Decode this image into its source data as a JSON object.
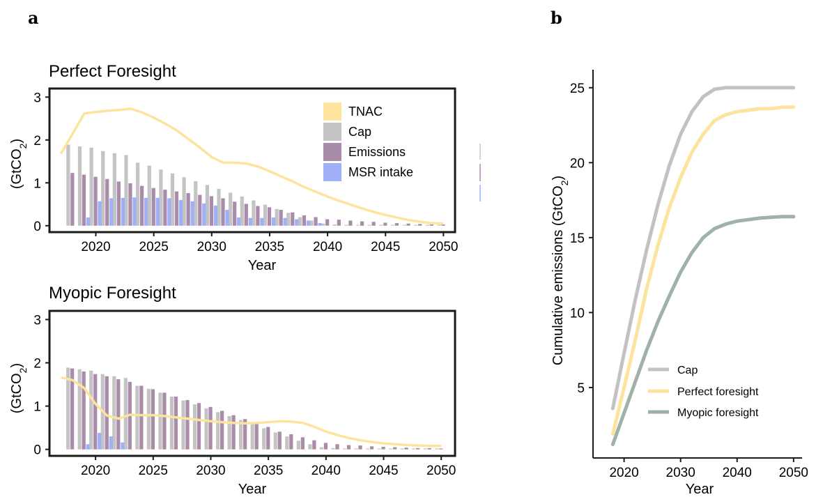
{
  "panels": {
    "a_label": "a",
    "b_label": "b"
  },
  "colors": {
    "tnac": "#fde49e",
    "cap": "#c4c4c4",
    "emissions": "#a98baa",
    "msr": "#9fb0f7",
    "cap_line": "#c3c1c4",
    "perfect_line": "#fde49e",
    "myopic_line": "#9fb2a8"
  },
  "chart_data": [
    {
      "type": "bar",
      "title": "Perfect Foresight",
      "xlabel": "Year",
      "ylabel": "(GtCO2)",
      "xlim": [
        2016,
        2051
      ],
      "ylim": [
        -0.15,
        3.2
      ],
      "xticks": [
        2020,
        2025,
        2030,
        2035,
        2040,
        2045,
        2050
      ],
      "yticks": [
        0,
        1,
        2,
        3
      ],
      "legend": {
        "position": "top-right",
        "entries": [
          "TNAC",
          "Cap",
          "Emissions",
          "MSR intake"
        ]
      },
      "x": [
        2018,
        2019,
        2020,
        2021,
        2022,
        2023,
        2024,
        2025,
        2026,
        2027,
        2028,
        2029,
        2030,
        2031,
        2032,
        2033,
        2034,
        2035,
        2036,
        2037,
        2038,
        2039,
        2040,
        2041,
        2042,
        2043,
        2044,
        2045,
        2046,
        2047,
        2048,
        2049,
        2050
      ],
      "series": [
        {
          "name": "Cap",
          "type": "bar",
          "values": [
            1.89,
            1.85,
            1.82,
            1.74,
            1.69,
            1.65,
            1.47,
            1.4,
            1.31,
            1.22,
            1.13,
            1.04,
            0.95,
            0.86,
            0.77,
            0.68,
            0.59,
            0.49,
            0.39,
            0.3,
            0.2,
            0.12,
            0.05,
            0.03,
            0.02,
            0.02,
            0.02,
            0.02,
            0.02,
            0.02,
            0.02,
            0.02,
            0.02
          ]
        },
        {
          "name": "Emissions",
          "type": "bar",
          "values": [
            1.23,
            1.19,
            1.14,
            1.09,
            1.03,
            0.99,
            0.93,
            0.88,
            0.84,
            0.8,
            0.76,
            0.72,
            0.69,
            0.64,
            0.56,
            0.51,
            0.46,
            0.43,
            0.37,
            0.31,
            0.24,
            0.2,
            0.15,
            0.14,
            0.12,
            0.1,
            0.09,
            0.07,
            0.06,
            0.05,
            0.04,
            0.03,
            0.03
          ]
        },
        {
          "name": "MSR intake",
          "type": "bar",
          "values": [
            0,
            0.19,
            0.57,
            0.64,
            0.65,
            0.66,
            0.65,
            0.65,
            0.64,
            0.6,
            0.57,
            0.52,
            0.47,
            0.37,
            0.19,
            0.18,
            0.18,
            0.19,
            0.18,
            0.15,
            0.12,
            0.06,
            0,
            0,
            0,
            0,
            0,
            0,
            0,
            0,
            0,
            0,
            0
          ]
        },
        {
          "name": "TNAC",
          "type": "line",
          "x": [
            2017,
            2018,
            2019,
            2020,
            2021,
            2022,
            2023,
            2024,
            2025,
            2026,
            2027,
            2028,
            2029,
            2030,
            2031,
            2032,
            2033,
            2034,
            2035,
            2036,
            2037,
            2038,
            2039,
            2040,
            2041,
            2042,
            2043,
            2044,
            2045,
            2046,
            2047,
            2048,
            2049,
            2050
          ],
          "values": [
            1.68,
            2.15,
            2.62,
            2.65,
            2.68,
            2.7,
            2.73,
            2.64,
            2.52,
            2.38,
            2.22,
            2.02,
            1.82,
            1.6,
            1.47,
            1.47,
            1.45,
            1.38,
            1.27,
            1.15,
            1.03,
            0.9,
            0.79,
            0.68,
            0.58,
            0.49,
            0.4,
            0.32,
            0.25,
            0.19,
            0.13,
            0.09,
            0.06,
            0.05
          ]
        }
      ]
    },
    {
      "type": "bar",
      "title": "Myopic Foresight",
      "xlabel": "Year",
      "ylabel": "(GtCO2)",
      "xlim": [
        2016,
        2051.2
      ],
      "ylim": [
        -0.15,
        3.2
      ],
      "xticks": [
        2020,
        2025,
        2030,
        2035,
        2040,
        2045,
        2050
      ],
      "yticks": [
        0,
        1,
        2,
        3
      ],
      "x": [
        2018,
        2019,
        2020,
        2021,
        2022,
        2023,
        2024,
        2025,
        2026,
        2027,
        2028,
        2029,
        2030,
        2031,
        2032,
        2033,
        2034,
        2035,
        2036,
        2037,
        2038,
        2039,
        2040,
        2041,
        2042,
        2043,
        2044,
        2045,
        2046,
        2047,
        2048,
        2049,
        2050
      ],
      "series": [
        {
          "name": "Cap",
          "type": "bar",
          "values": [
            1.89,
            1.85,
            1.82,
            1.74,
            1.69,
            1.65,
            1.47,
            1.4,
            1.31,
            1.22,
            1.13,
            1.04,
            0.95,
            0.86,
            0.77,
            0.68,
            0.59,
            0.49,
            0.39,
            0.3,
            0.2,
            0.12,
            0.05,
            0.03,
            0.02,
            0.02,
            0.02,
            0.02,
            0.02,
            0.02,
            0.02,
            0.02,
            0.02
          ]
        },
        {
          "name": "Emissions",
          "type": "bar",
          "values": [
            1.87,
            1.8,
            1.74,
            1.69,
            1.62,
            1.56,
            1.47,
            1.39,
            1.31,
            1.22,
            1.14,
            1.07,
            0.98,
            0.89,
            0.79,
            0.7,
            0.62,
            0.52,
            0.41,
            0.35,
            0.28,
            0.21,
            0.15,
            0.12,
            0.1,
            0.09,
            0.07,
            0.06,
            0.05,
            0.04,
            0.03,
            0.03,
            0.02
          ]
        },
        {
          "name": "MSR intake",
          "type": "bar",
          "values": [
            0,
            0.12,
            0.38,
            0.3,
            0.16,
            0,
            0,
            0,
            0,
            0,
            0,
            0,
            0,
            0,
            0,
            0,
            0,
            0,
            0,
            0,
            0,
            0,
            0,
            0,
            0,
            0,
            0,
            0,
            0,
            0,
            0,
            0,
            0
          ]
        },
        {
          "name": "TNAC",
          "type": "line",
          "x": [
            2017,
            2018,
            2019,
            2020,
            2021,
            2022,
            2023,
            2024,
            2025,
            2026,
            2027,
            2028,
            2029,
            2030,
            2031,
            2032,
            2033,
            2034,
            2035,
            2036,
            2037,
            2038,
            2039,
            2040,
            2041,
            2042,
            2043,
            2044,
            2045,
            2046,
            2047,
            2048,
            2049,
            2050
          ],
          "values": [
            1.66,
            1.6,
            1.42,
            1.05,
            0.78,
            0.71,
            0.8,
            0.79,
            0.79,
            0.77,
            0.74,
            0.71,
            0.68,
            0.65,
            0.63,
            0.61,
            0.6,
            0.61,
            0.63,
            0.65,
            0.64,
            0.61,
            0.52,
            0.41,
            0.33,
            0.26,
            0.21,
            0.17,
            0.14,
            0.12,
            0.1,
            0.09,
            0.08,
            0.08
          ]
        }
      ]
    },
    {
      "type": "line",
      "xlabel": "Year",
      "ylabel": "Cumulative emissions (GtCO2)",
      "xlim": [
        2014.5,
        2051.5
      ],
      "ylim": [
        0.3,
        26.2
      ],
      "xticks": [
        2020,
        2030,
        2040,
        2050
      ],
      "yticks": [
        5,
        10,
        15,
        20,
        25
      ],
      "legend": {
        "position": "bottom-right",
        "entries": [
          "Cap",
          "Perfect foresight",
          "Myopic foresight"
        ]
      },
      "x": [
        2018,
        2020,
        2022,
        2024,
        2026,
        2028,
        2030,
        2032,
        2034,
        2036,
        2038,
        2040,
        2042,
        2044,
        2046,
        2048,
        2050
      ],
      "series": [
        {
          "name": "Cap",
          "values": [
            3.6,
            7.3,
            10.9,
            14.2,
            17.2,
            19.8,
            21.9,
            23.4,
            24.4,
            24.9,
            25.0,
            25.0,
            25.0,
            25.0,
            25.0,
            25.0,
            25.0
          ]
        },
        {
          "name": "Perfect foresight",
          "values": [
            1.9,
            5.0,
            8.2,
            11.6,
            14.5,
            17.0,
            19.0,
            20.7,
            21.9,
            22.8,
            23.2,
            23.4,
            23.5,
            23.6,
            23.6,
            23.7,
            23.7
          ]
        },
        {
          "name": "Myopic foresight",
          "values": [
            1.2,
            3.3,
            5.4,
            7.5,
            9.4,
            11.1,
            12.7,
            14.0,
            15.0,
            15.6,
            15.9,
            16.1,
            16.2,
            16.3,
            16.35,
            16.4,
            16.4
          ]
        }
      ]
    }
  ]
}
